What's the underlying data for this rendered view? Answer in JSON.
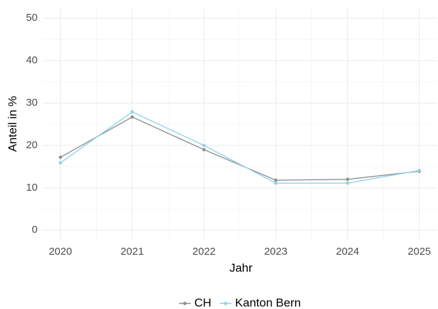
{
  "chart_data": {
    "type": "line",
    "x": [
      2020,
      2021,
      2022,
      2023,
      2024,
      2025
    ],
    "series": [
      {
        "name": "CH",
        "color": "#8f8f8f",
        "values": [
          17.2,
          26.7,
          19.0,
          11.8,
          12.0,
          13.9
        ]
      },
      {
        "name": "Kanton Bern",
        "color": "#8ed3ea",
        "values": [
          15.9,
          27.9,
          20.0,
          11.1,
          11.1,
          14.1
        ]
      }
    ],
    "xlabel": "Jahr",
    "ylabel": "Anteil in %",
    "xlim": [
      2019.75,
      2025.25
    ],
    "xticks": [
      2020,
      2021,
      2022,
      2023,
      2024,
      2025
    ],
    "ylim": [
      -2.5,
      52.5
    ],
    "yticks": [
      0,
      10,
      20,
      30,
      40,
      50
    ],
    "grid": true,
    "legend": "bottom"
  }
}
